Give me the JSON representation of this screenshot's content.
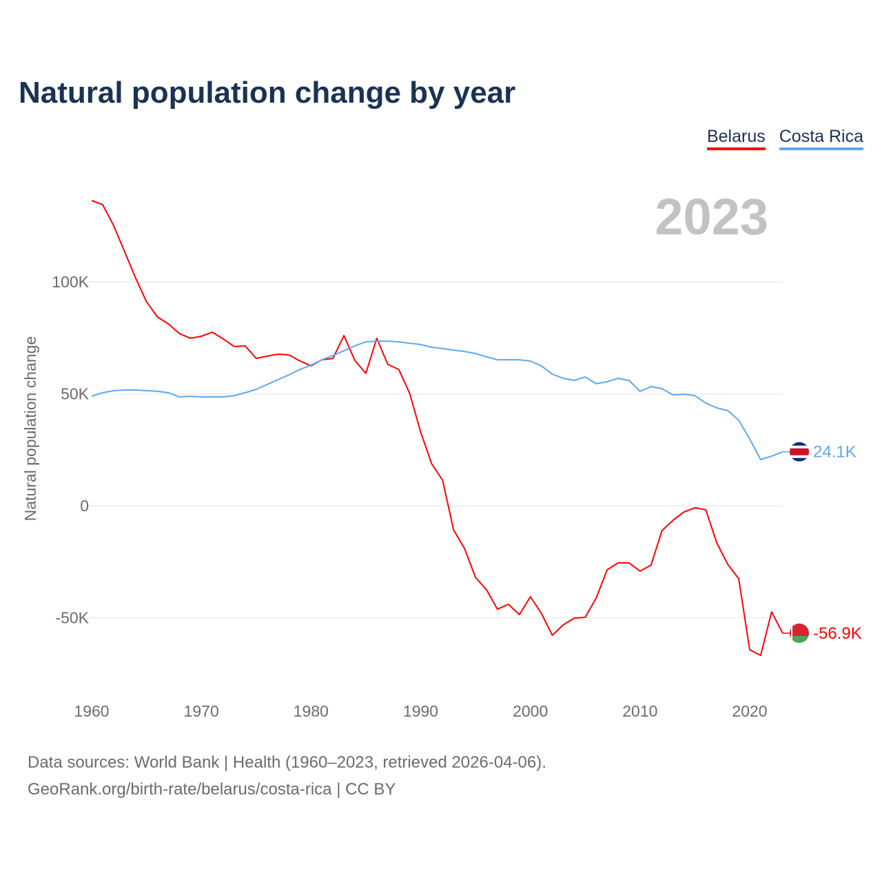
{
  "title": "Natural population change by year",
  "year_label": "2023",
  "footer": {
    "line1": "Data sources: World Bank | Health (1960–2023, retrieved 2026-04-06).",
    "line2": "GeoRank.org/birth-rate/belarus/costa-rica | CC BY"
  },
  "chart_data": {
    "type": "line",
    "title": "Natural population change by year",
    "xlabel": "",
    "ylabel": "Natural population change",
    "xlim": [
      1960,
      2023
    ],
    "ylim": [
      -72000,
      140000
    ],
    "grid": true,
    "legend_placement": "top-right",
    "x_ticks": [
      1960,
      1970,
      1980,
      1990,
      2000,
      2010,
      2020
    ],
    "x_tick_labels": [
      "1960",
      "1970",
      "1980",
      "1990",
      "2000",
      "2010",
      "2020"
    ],
    "y_ticks": [
      -50000,
      0,
      50000,
      100000
    ],
    "y_tick_labels": [
      "-50K",
      "0",
      "50K",
      "100K"
    ],
    "x": [
      1960,
      1961,
      1962,
      1963,
      1964,
      1965,
      1966,
      1967,
      1968,
      1969,
      1970,
      1971,
      1972,
      1973,
      1974,
      1975,
      1976,
      1977,
      1978,
      1979,
      1980,
      1981,
      1982,
      1983,
      1984,
      1985,
      1986,
      1987,
      1988,
      1989,
      1990,
      1991,
      1992,
      1993,
      1994,
      1995,
      1996,
      1997,
      1998,
      1999,
      2000,
      2001,
      2002,
      2003,
      2004,
      2005,
      2006,
      2007,
      2008,
      2009,
      2010,
      2011,
      2012,
      2013,
      2014,
      2015,
      2016,
      2017,
      2018,
      2019,
      2020,
      2021,
      2022,
      2023
    ],
    "series": [
      {
        "name": "Belarus",
        "color": "#ff0000",
        "end_label": "-56.9K",
        "flag": "belarus-flag",
        "values": [
          136300,
          134500,
          125200,
          113500,
          101800,
          91100,
          84300,
          81200,
          76900,
          74800,
          75700,
          77500,
          74500,
          71100,
          71400,
          65800,
          66800,
          67700,
          67400,
          64600,
          62500,
          65200,
          65800,
          76000,
          64900,
          59100,
          74800,
          63100,
          60900,
          50200,
          32900,
          18800,
          11400,
          -10800,
          -19100,
          -32000,
          -37500,
          -46200,
          -44000,
          -48600,
          -40600,
          -48000,
          -57800,
          -53200,
          -50200,
          -49800,
          -41200,
          -28600,
          -25500,
          -25500,
          -29200,
          -26500,
          -11100,
          -6500,
          -2800,
          -900,
          -1800,
          -16600,
          -26200,
          -32600,
          -64300,
          -66800,
          -47400,
          -56900
        ]
      },
      {
        "name": "Costa Rica",
        "color": "#5ea8ee",
        "end_label": "24.1K",
        "flag": "costa-rica-flag",
        "values": [
          48900,
          50500,
          51400,
          51700,
          51700,
          51400,
          51100,
          50500,
          48600,
          48900,
          48600,
          48600,
          48600,
          49200,
          50500,
          52000,
          54200,
          56300,
          58500,
          60900,
          62800,
          65200,
          67100,
          69200,
          71400,
          73200,
          73500,
          73500,
          73200,
          72600,
          72000,
          70800,
          70200,
          69500,
          68900,
          68000,
          66500,
          65200,
          65200,
          65200,
          64600,
          62500,
          58800,
          56900,
          56000,
          57500,
          54500,
          55400,
          56900,
          56000,
          51100,
          53200,
          52300,
          49500,
          49800,
          49200,
          45800,
          43700,
          42500,
          38200,
          29800,
          20600,
          22200,
          24100
        ]
      }
    ]
  }
}
